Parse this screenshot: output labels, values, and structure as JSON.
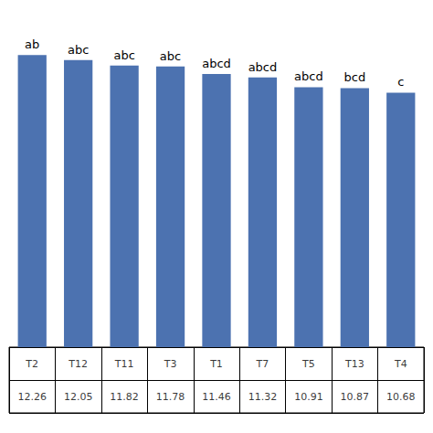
{
  "chart_data": {
    "type": "bar",
    "categories": [
      "T2",
      "T12",
      "T11",
      "T3",
      "T1",
      "T7",
      "T5",
      "T13",
      "T4"
    ],
    "values": [
      12.26,
      12.05,
      11.82,
      11.78,
      11.46,
      11.32,
      10.91,
      10.87,
      10.68
    ],
    "annotations": [
      "ab",
      "abc",
      "abc",
      "abc",
      "abcd",
      "abcd",
      "abcd",
      "bcd",
      "c"
    ],
    "color": "#4C72B0",
    "ylim": [
      0,
      13.8
    ],
    "grid": false,
    "tick_labels": false,
    "data_labels": true
  }
}
